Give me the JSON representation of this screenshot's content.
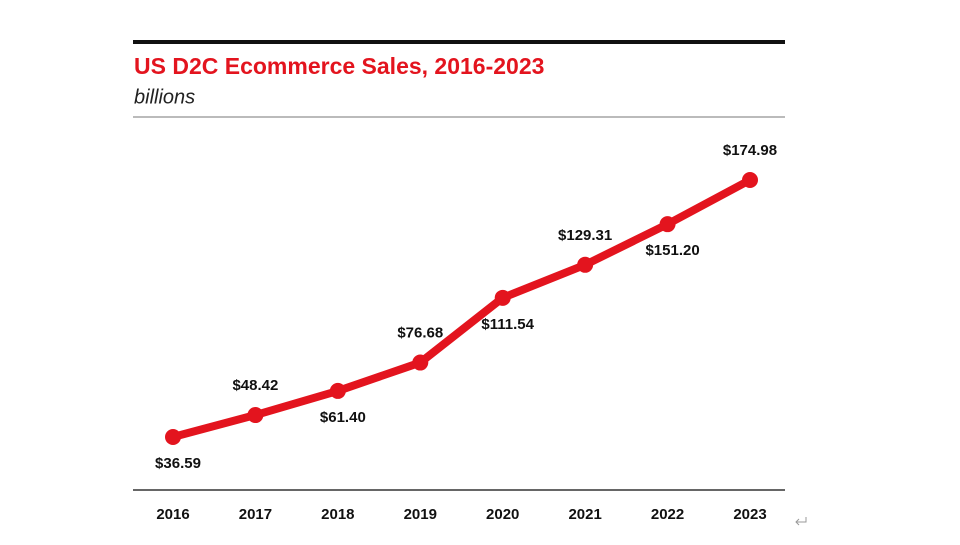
{
  "chart_data": {
    "type": "line",
    "title": "US D2C Ecommerce Sales, 2016-2023",
    "subtitle": "billions",
    "categories": [
      "2016",
      "2017",
      "2018",
      "2019",
      "2020",
      "2021",
      "2022",
      "2023"
    ],
    "series": [
      {
        "name": "US D2C Ecommerce Sales",
        "color": "#e3141e",
        "values": [
          36.59,
          48.42,
          61.4,
          76.68,
          111.54,
          129.31,
          151.2,
          174.98
        ],
        "value_labels": [
          "$36.59",
          "$48.42",
          "$61.40",
          "$76.68",
          "$111.54",
          "$129.31",
          "$151.20",
          "$174.98"
        ]
      }
    ]
  }
}
